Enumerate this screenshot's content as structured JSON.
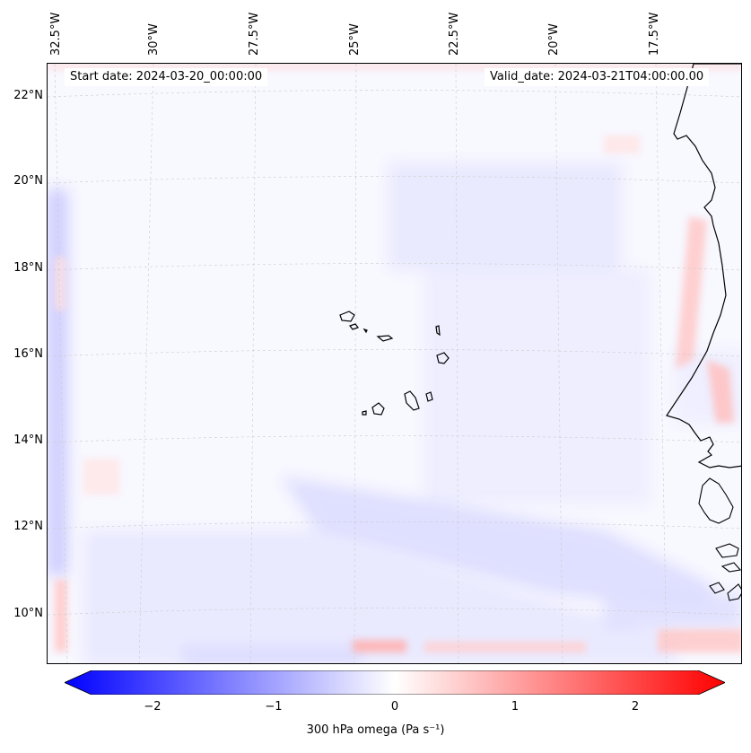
{
  "map": {
    "header_left": "Start date: 2024-03-20_00:00:00",
    "header_right": "Valid_date: 2024-03-21T04:00:00.00",
    "lon_labels": [
      "32.5°W",
      "30°W",
      "27.5°W",
      "25°W",
      "22.5°W",
      "20°W",
      "17.5°W"
    ],
    "lat_labels": [
      "22°N",
      "20°N",
      "18°N",
      "16°N",
      "14°N",
      "12°N",
      "10°N"
    ],
    "features": [
      "Cape Verde islands",
      "West African coastline"
    ]
  },
  "colorbar": {
    "label": "300 hPa omega (Pa s⁻¹)",
    "ticks": [
      "−2",
      "−1",
      "0",
      "1",
      "2"
    ],
    "colors": {
      "negative": "#0000ff",
      "neutral": "#ffffff",
      "positive": "#ff0000"
    }
  }
}
